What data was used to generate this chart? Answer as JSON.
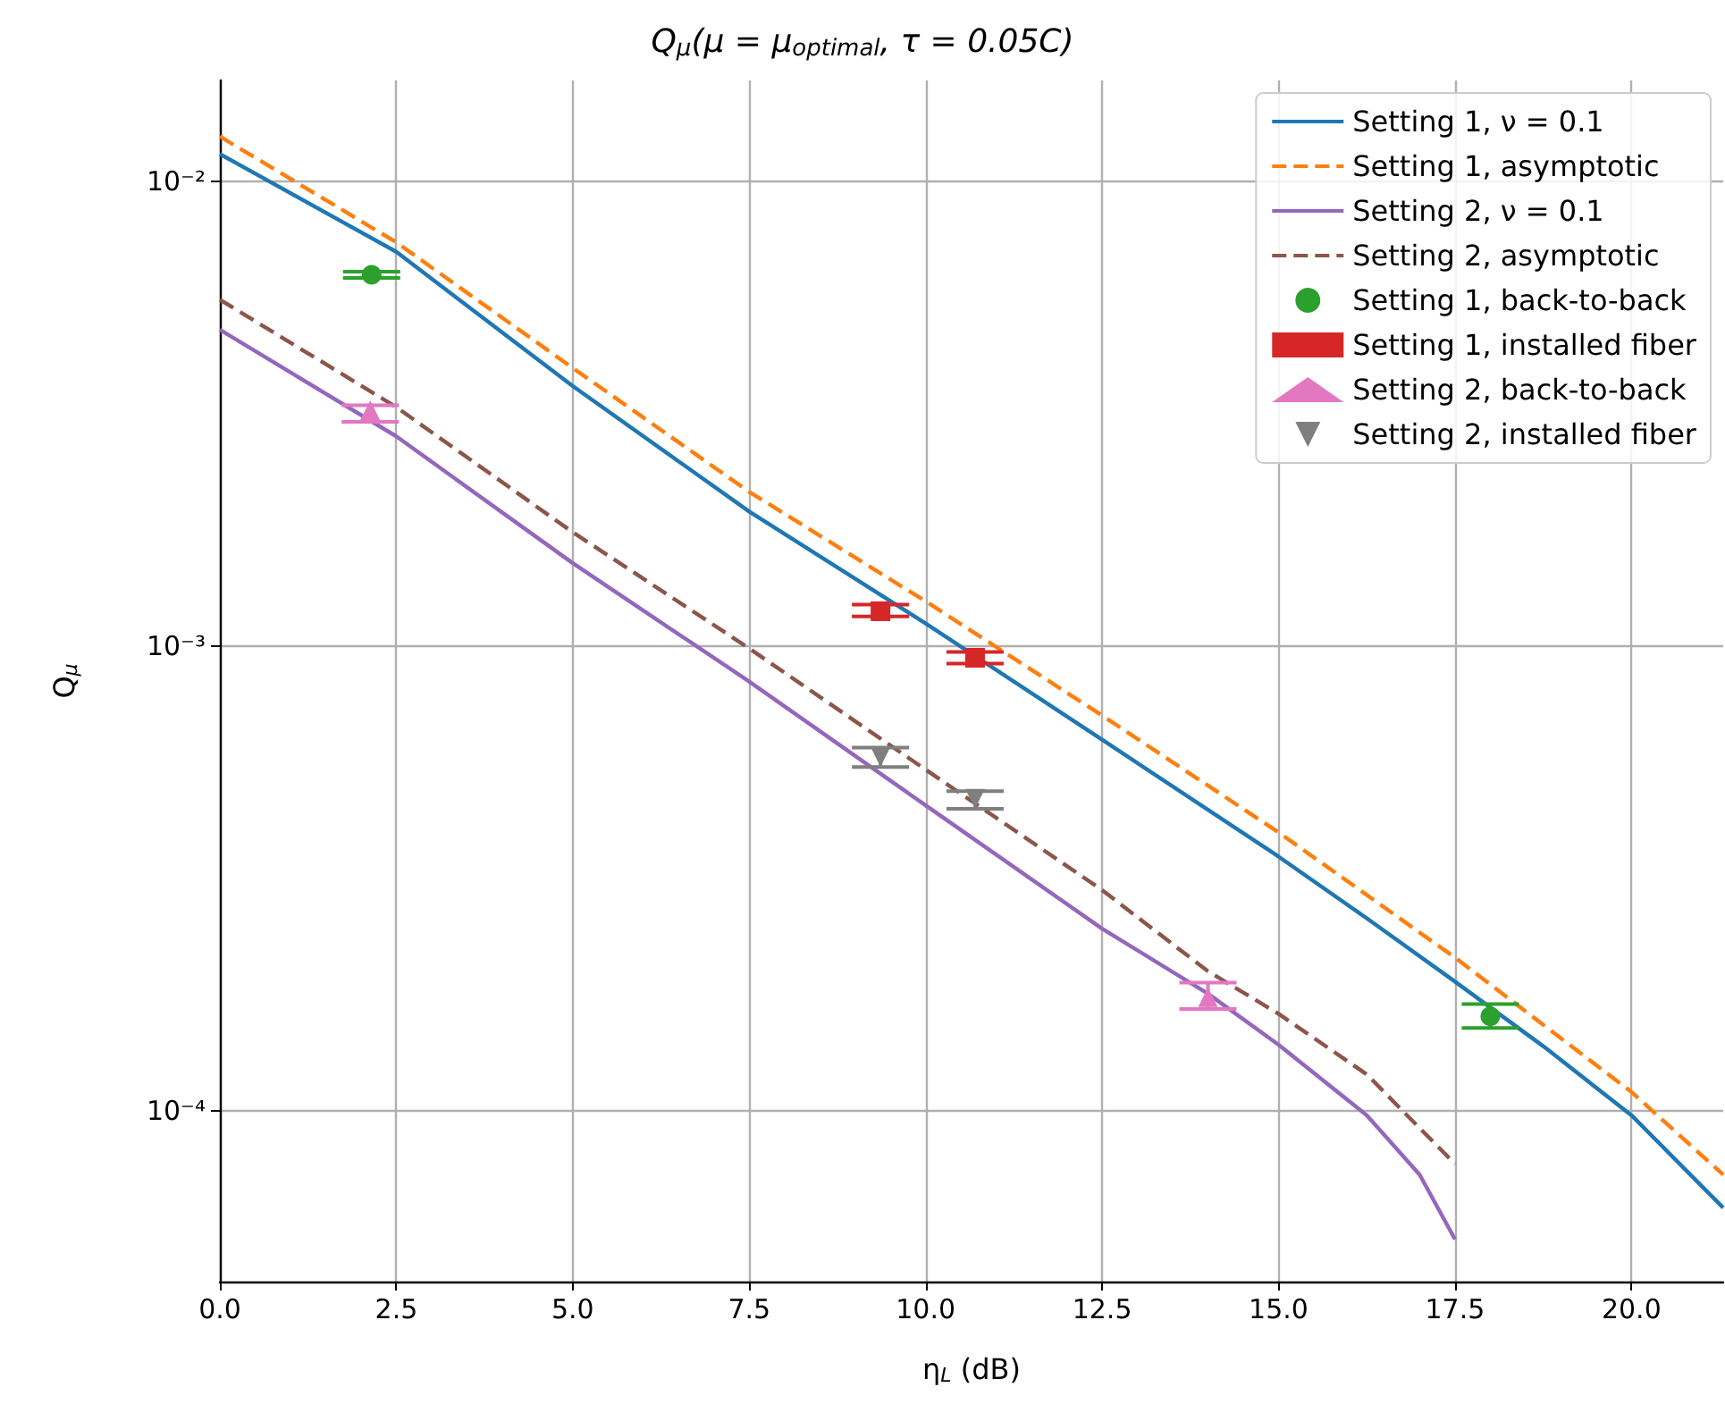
{
  "chart_data": {
    "type": "line",
    "title": "Q$_{μ}$(μ = μ$_{optimal}$, τ = 0.05C)",
    "xlabel": "η$_{L}$ (dB)",
    "ylabel": "Q$_{μ}$",
    "series": [
      {
        "name": "Setting 1, ν = 0.1",
        "color": "#1f77b4",
        "line_style": "solid",
        "marker": "none",
        "x": [
          0,
          2.5,
          5,
          7.5,
          10,
          12.5,
          15,
          16.25,
          17.5,
          18.75,
          20,
          21.3
        ],
        "values": [
          0.01146,
          0.00706,
          0.00363,
          0.00195,
          0.00112,
          0.00063,
          0.000353,
          0.00026,
          0.00019,
          0.000138,
          9.8e-05,
          6.2e-05
        ]
      },
      {
        "name": "Setting 1, asymptotic",
        "color": "#ff7f0e",
        "line_style": "dashed",
        "marker": "none",
        "x": [
          0,
          2.5,
          5,
          7.5,
          10,
          12.5,
          15,
          17.5,
          20,
          21.3
        ],
        "values": [
          0.0125,
          0.0074,
          0.00397,
          0.00215,
          0.00125,
          0.00071,
          0.000398,
          0.000214,
          0.00011,
          7.3e-05
        ]
      },
      {
        "name": "Setting 2, ν = 0.1",
        "color": "#9467bd",
        "line_style": "solid",
        "marker": "none",
        "x": [
          0,
          2.5,
          5,
          7.5,
          10,
          12.5,
          14,
          15,
          16.25,
          17,
          17.5
        ],
        "values": [
          0.0048,
          0.00283,
          0.00151,
          0.00084,
          0.000455,
          0.000247,
          0.000179,
          0.000139,
          9.8e-05,
          7.3e-05,
          5.3e-05
        ]
      },
      {
        "name": "Setting 2, asymptotic",
        "color": "#8c564b",
        "line_style": "dashed",
        "marker": "none",
        "x": [
          0,
          2.5,
          5,
          7.5,
          10,
          12.5,
          14,
          15,
          16.25,
          17.5
        ],
        "values": [
          0.00557,
          0.00327,
          0.00176,
          0.00099,
          0.000543,
          0.000299,
          0.0002,
          0.000162,
          0.00012,
          7.7e-05
        ]
      },
      {
        "name": "Setting 1, back-to-back",
        "type": "scatter",
        "color": "#2ca02c",
        "marker": "circle",
        "x": [
          2.15,
          18.0
        ],
        "values": [
          0.0063,
          0.00016
        ],
        "errors": [
          [
            0.0062,
            0.0064
          ],
          [
            0.000151,
            0.00017
          ]
        ]
      },
      {
        "name": "Setting 1, installed fiber",
        "type": "scatter",
        "color": "#d62728",
        "marker": "square",
        "x": [
          9.36,
          10.7
        ],
        "values": [
          0.00119,
          0.000945
        ],
        "errors": [
          [
            0.00116,
            0.00123
          ],
          [
            0.000918,
            0.000973
          ]
        ]
      },
      {
        "name": "Setting 2, back-to-back",
        "type": "scatter",
        "color": "#e377c2",
        "marker": "triangle",
        "x": [
          2.13,
          14.0
        ],
        "values": [
          0.00322,
          0.000176
        ],
        "errors": [
          [
            0.00304,
            0.0033
          ],
          [
            0.000166,
            0.000189
          ]
        ]
      },
      {
        "name": "Setting 2, installed fiber",
        "type": "scatter",
        "color": "#7f7f7f",
        "marker": "triangle-down",
        "x": [
          9.36,
          10.7
        ],
        "values": [
          0.000578,
          0.00047
        ],
        "errors": [
          [
            0.00055,
            0.000606
          ],
          [
            0.000447,
            0.000488
          ]
        ]
      }
    ],
    "xlim": [
      0,
      21.3
    ],
    "xticks": [
      {
        "value": 0,
        "label": "0.0"
      },
      {
        "value": 2.5,
        "label": "2.5"
      },
      {
        "value": 5,
        "label": "5.0"
      },
      {
        "value": 7.5,
        "label": "7.5"
      },
      {
        "value": 10,
        "label": "10.0"
      },
      {
        "value": 12.5,
        "label": "12.5"
      },
      {
        "value": 15,
        "label": "15.0"
      },
      {
        "value": 17.5,
        "label": "17.5"
      },
      {
        "value": 20,
        "label": "20.0"
      }
    ],
    "ylim": [
      4.3e-05,
      0.0165
    ],
    "yticks": [
      {
        "value": 0.0001,
        "label": "10⁻⁴"
      },
      {
        "value": 0.001,
        "label": "10⁻³"
      },
      {
        "value": 0.01,
        "label": "10⁻²"
      }
    ],
    "log": "y",
    "grid": true,
    "legend": "top right"
  }
}
